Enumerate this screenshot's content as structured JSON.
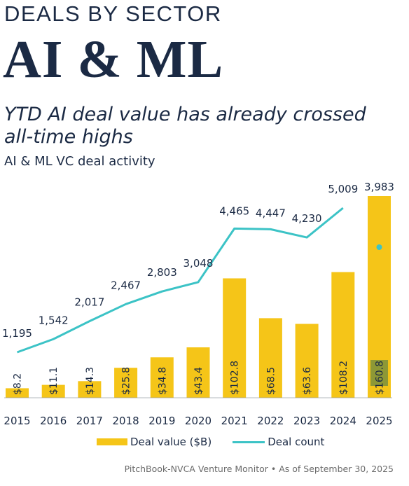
{
  "header": {
    "kicker": "DEALS BY SECTOR",
    "title": "AI & ML",
    "headline": "YTD AI deal value has already crossed all-time highs",
    "subtitle": "AI & ML VC deal activity"
  },
  "legend": {
    "bar_label": "Deal value ($B)",
    "line_label": "Deal count"
  },
  "source": "PitchBook-NVCA Venture Monitor  •  As of September 30, 2025",
  "colors": {
    "bar": "#f5c518",
    "bar_highlight": "#7a8f3c",
    "line": "#3cc3c6",
    "text": "#1b2a44"
  },
  "chart_data": {
    "type": "bar",
    "categories": [
      "2015",
      "2016",
      "2017",
      "2018",
      "2019",
      "2020",
      "2021",
      "2022",
      "2023",
      "2024",
      "2025"
    ],
    "series": [
      {
        "name": "Deal value ($B)",
        "type": "bar",
        "values": [
          8.2,
          11.1,
          14.3,
          25.8,
          34.8,
          43.4,
          102.8,
          68.5,
          63.6,
          108.2,
          160.8
        ],
        "labels": [
          "$8.2",
          "$11.1",
          "$14.3",
          "$25.8",
          "$34.8",
          "$43.4",
          "$102.8",
          "$68.5",
          "$63.6",
          "$108.2",
          "$160.8"
        ]
      },
      {
        "name": "Deal count",
        "type": "line",
        "values": [
          1195,
          1542,
          2017,
          2467,
          2803,
          3048,
          4465,
          4447,
          4230,
          5009,
          3983
        ],
        "labels": [
          "1,195",
          "1,542",
          "2,017",
          "2,467",
          "2,803",
          "3,048",
          "4,465",
          "4,447",
          "4,230",
          "5,009",
          "3,983"
        ]
      }
    ],
    "notes": "2025 is year-to-date: bar highlighted segment shows Q3 YTD value; deal count shown as point, not connected to line"
  }
}
